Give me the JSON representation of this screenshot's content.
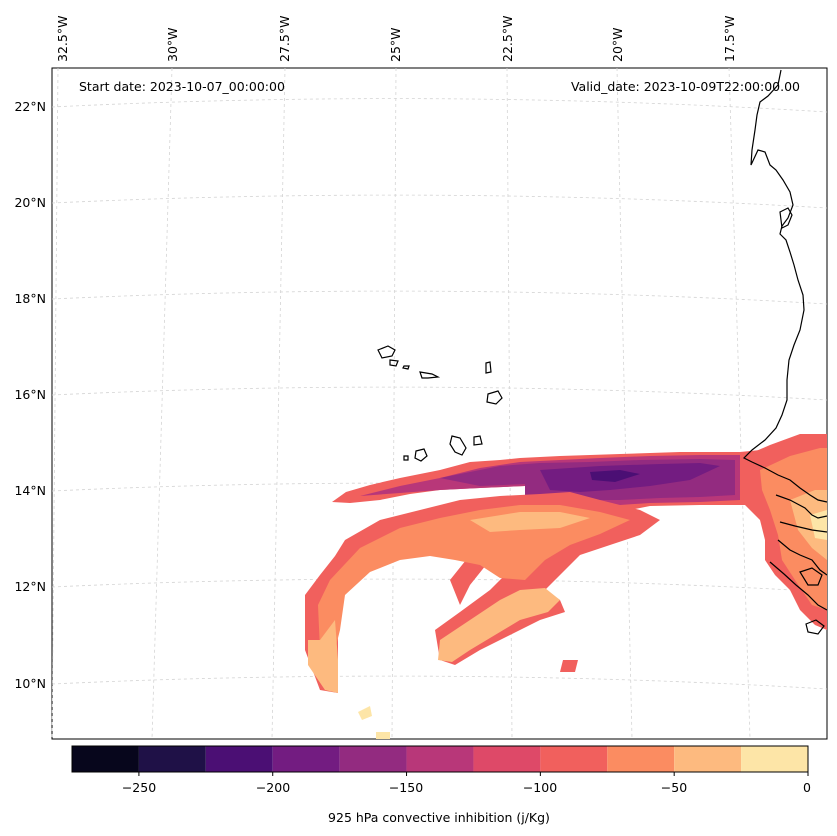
{
  "header": {
    "start_date": "Start date: 2023-10-07_00:00:00",
    "valid_date": "Valid_date: 2023-10-09T22:00:00.00"
  },
  "longitude_labels": [
    "32.5°W",
    "30°W",
    "27.5°W",
    "25°W",
    "22.5°W",
    "20°W",
    "17.5°W"
  ],
  "latitude_labels": [
    "22°N",
    "20°N",
    "18°N",
    "16°N",
    "14°N",
    "12°N",
    "10°N"
  ],
  "colorbar": {
    "label": "925 hPa convective inhibition (j/Kg)",
    "tick_labels": [
      "−250",
      "−200",
      "−150",
      "−100",
      "−50",
      "0"
    ],
    "levels": [
      -275,
      -250,
      -225,
      -200,
      -175,
      -150,
      -125,
      -100,
      -75,
      -50,
      -25,
      0
    ],
    "colors": [
      "#07061c",
      "#1f1147",
      "#4b0f74",
      "#731c81",
      "#932b80",
      "#b83779",
      "#de4968",
      "#f1605d",
      "#fb8c61",
      "#fdba7f",
      "#fde5a7"
    ]
  },
  "map": {
    "projection": "conic",
    "lon_range": [
      "33°W",
      "15.5°W"
    ],
    "lat_range": [
      "9°N",
      "22.8°N"
    ],
    "field": "925 hPa convective inhibition",
    "coastline_color": "#000000",
    "gridline_color": "#cccccc"
  }
}
